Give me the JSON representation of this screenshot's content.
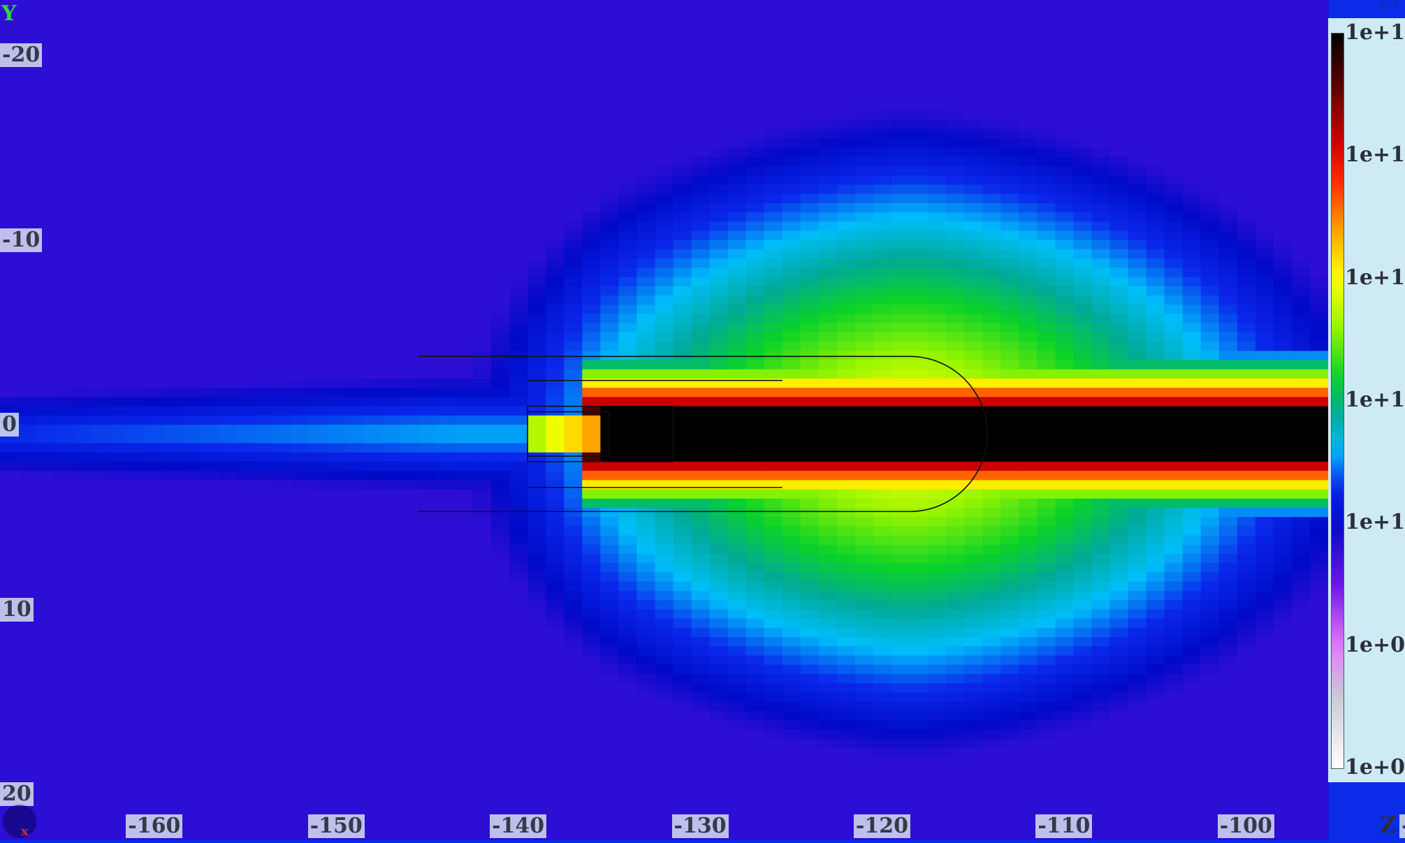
{
  "axes": {
    "y_axis_letter": "Y",
    "z_axis_letter": "Z",
    "x_axis_letter": "x",
    "view_tag": "Z:-Y"
  },
  "chart_data": {
    "type": "heatmap",
    "title": "",
    "xlabel": "Z",
    "ylabel": "Y",
    "xlim": [
      -167,
      -94
    ],
    "ylim": [
      -23,
      22.5
    ],
    "x_ticks": [
      "-160",
      "-150",
      "-140",
      "-130",
      "-120",
      "-110",
      "-100",
      "-90"
    ],
    "y_ticks": [
      "-20",
      "-10",
      "0",
      "10",
      "20"
    ],
    "y_axis_inverted": true,
    "colorbar": {
      "scale": "log",
      "range": [
        100000000.0,
        100000000000000.0
      ],
      "tick_labels": [
        "1e+14",
        "1e+13",
        "1e+12",
        "1e+11",
        "1e+10",
        "1e+09",
        "1e+08"
      ]
    },
    "field_model": {
      "beam": {
        "z_start": -133.5,
        "y_center": 0.5,
        "half_width": 1.3,
        "value_log10": 14
      },
      "plume_peak_log10": 12.2,
      "plume_center_z": -117
    },
    "geometry": [
      {
        "name": "outer-tube",
        "z_from": -142,
        "z_to": -117,
        "y_half": 4.2
      },
      {
        "name": "inner-tube",
        "z_from": -138,
        "z_to": -124,
        "y_half": 2.9
      },
      {
        "name": "target-holder",
        "z_from": -135,
        "z_to": -130,
        "y_half": 1.5
      },
      {
        "name": "target-slab",
        "z_from": -138,
        "z_to": -133.5,
        "y_half": 1.2
      }
    ],
    "grid": false,
    "legend_position": "right"
  },
  "colors": {
    "background_low": "#0a2be8",
    "label_bg": "#dde8f0",
    "colorbar_panel": "#cdeaf5",
    "outline": "#111111",
    "axis_y_color": "#2fd83a",
    "axis_x_color": "#e0262b"
  }
}
